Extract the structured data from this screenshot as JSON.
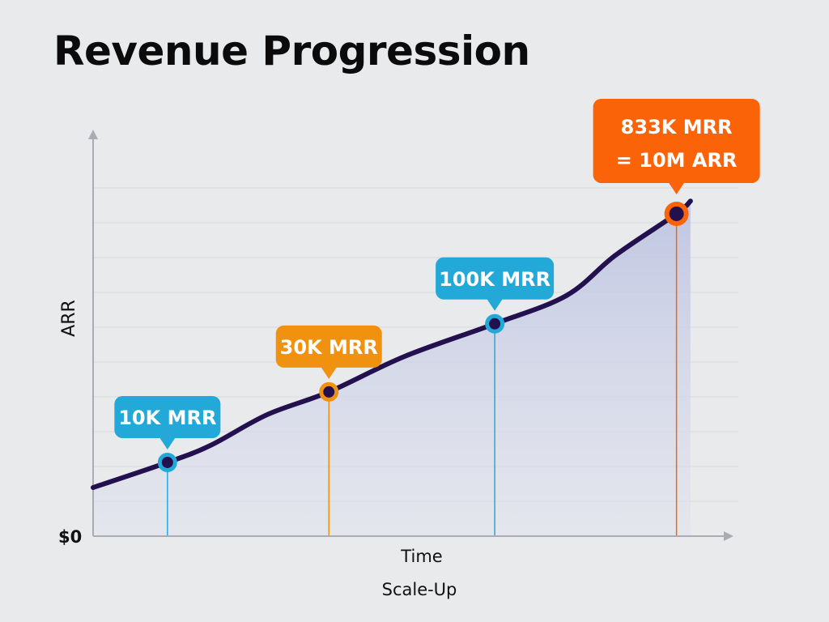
{
  "chart_data": {
    "type": "area",
    "title": "Revenue Progression",
    "xlabel": "Time",
    "ylabel": "ARR",
    "subtitle_below_axis": "Scale-Up",
    "y_tick_labels": [
      "$0"
    ],
    "xlim": [
      0,
      100
    ],
    "ylim": [
      0,
      100
    ],
    "grid": true,
    "series": [
      {
        "x": [
          0,
          11.7,
          18.5,
          27.4,
          37.1,
          49.0,
          63.2,
          74.5,
          82.2,
          91.8,
          94.0
        ],
        "y": [
          12.2,
          18.5,
          22.8,
          30.5,
          36.2,
          45.1,
          53.3,
          60.4,
          70.5,
          80.9,
          84.1
        ]
      }
    ],
    "annotations": [
      {
        "text": "10K MRR",
        "x": 11.7,
        "y": 18.5,
        "color": "#22a9d8"
      },
      {
        "text": "30K MRR",
        "x": 37.1,
        "y": 36.2,
        "color": "#f0920f"
      },
      {
        "text": "100K MRR",
        "x": 63.2,
        "y": 53.3,
        "color": "#22a9d8"
      },
      {
        "text": "833K MRR",
        "text2": "= 10M ARR",
        "x": 91.8,
        "y": 80.9,
        "color": "#fb6308"
      }
    ],
    "colors": {
      "line": "#22104f",
      "fill": "#c9cfe6",
      "axis": "#a9adb3",
      "grid": "#d8dadd"
    }
  }
}
